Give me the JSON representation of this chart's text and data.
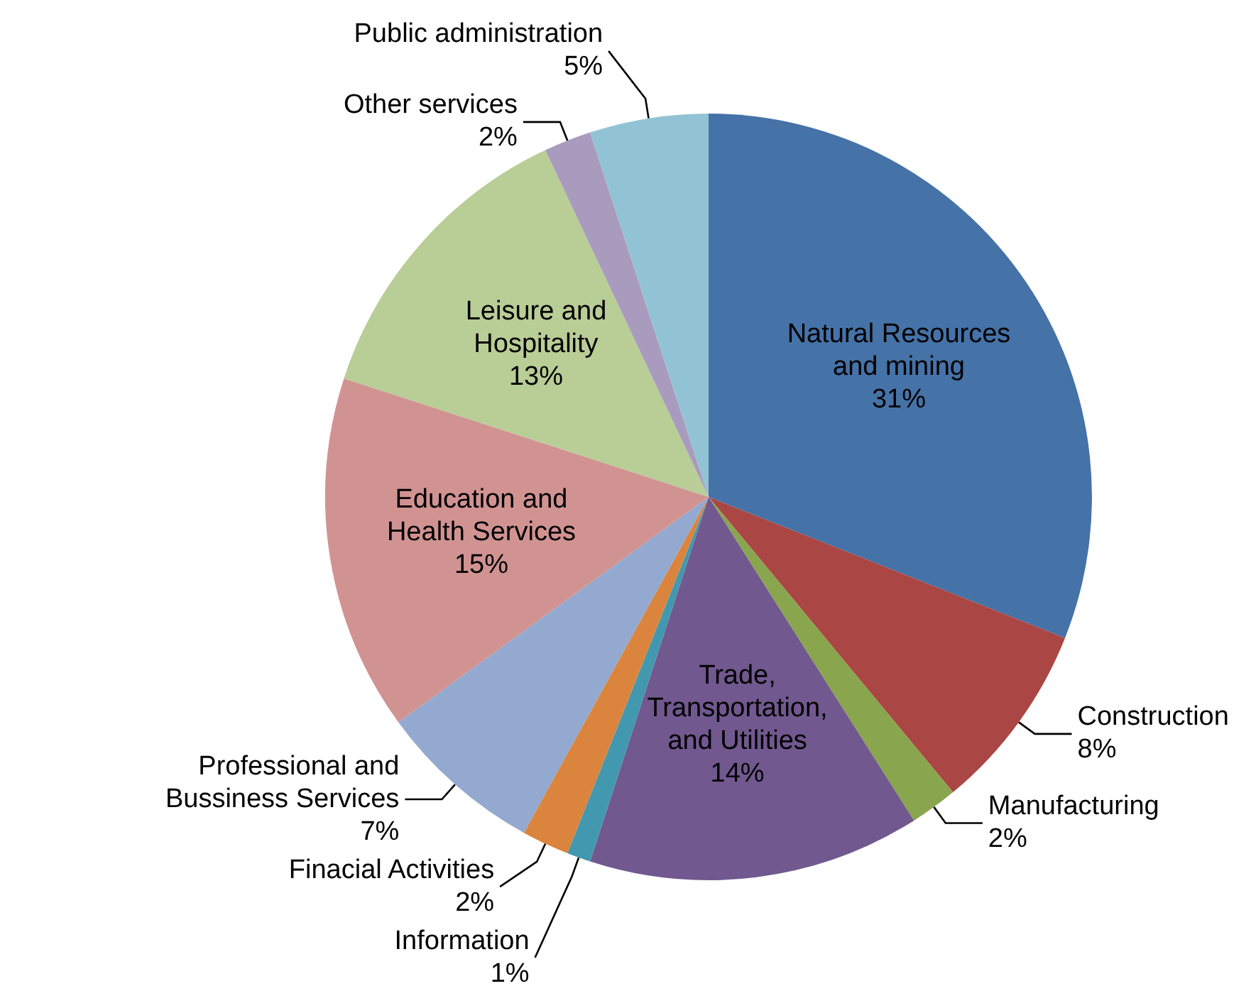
{
  "chart_data": {
    "type": "pie",
    "categories": [
      "Natural Resources and mining",
      "Construction",
      "Manufacturing",
      "Trade, Transportation, and Utilities",
      "Information",
      "Finacial Activities",
      "Professional and Bussiness Services",
      "Education and Health Services",
      "Leisure and Hospitality",
      "Other services",
      "Public administration"
    ],
    "values": [
      31,
      8,
      2,
      14,
      1,
      2,
      7,
      15,
      13,
      2,
      5
    ],
    "value_labels": [
      "31%",
      "8%",
      "2%",
      "14%",
      "1%",
      "2%",
      "7%",
      "15%",
      "13%",
      "2%",
      "5%"
    ],
    "colors": [
      "#4572a7",
      "#aa4643",
      "#89a54e",
      "#71588f",
      "#4198af",
      "#db843d",
      "#93a9cf",
      "#d19392",
      "#b9cd96",
      "#a99bbd",
      "#92c3d5"
    ],
    "legend": false
  }
}
